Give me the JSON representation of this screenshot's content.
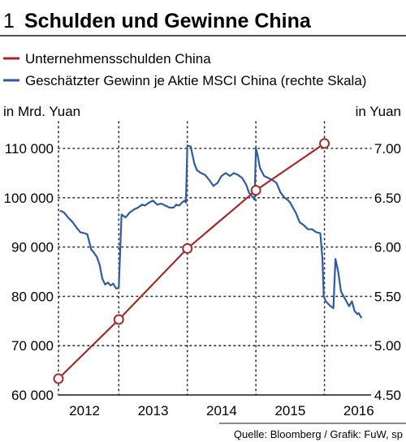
{
  "chart_data": {
    "type": "line",
    "title_number": "1",
    "title": "Schulden und Gewinne China",
    "legend": [
      {
        "label": "Unternehmensschulden China",
        "color": "#a52a2a"
      },
      {
        "label": "Geschätzter Gewinn je Aktie MSCI China (rechte Skala)",
        "color": "#2e5aa7"
      }
    ],
    "ylabel_left": "in Mrd. Yuan",
    "ylabel_right": "in Yuan",
    "ylim_left": [
      60000,
      110000
    ],
    "ylim_right": [
      4.5,
      7.0
    ],
    "yticks_left": [
      "110 000",
      "100 000",
      "90 000",
      "80 000",
      "70 000",
      "60 000"
    ],
    "yticks_left_values": [
      110000,
      100000,
      90000,
      80000,
      70000,
      60000
    ],
    "yticks_right": [
      "7.00",
      "6.50",
      "6.00",
      "5.50",
      "5.00",
      "4.50"
    ],
    "yticks_right_values": [
      7.0,
      6.5,
      6.0,
      5.5,
      5.0,
      4.5
    ],
    "xlim": [
      2011.62,
      2016.18
    ],
    "xticks": [
      "2012",
      "2013",
      "2014",
      "2015",
      "2016"
    ],
    "xtick_positions": [
      2012.0,
      2013.0,
      2014.0,
      2015.0,
      2016.0
    ],
    "gridlines_x": [
      2011.62,
      2012.5,
      2013.5,
      2014.5,
      2015.5
    ],
    "grid": true,
    "series": [
      {
        "name": "Unternehmensschulden China",
        "axis": "left",
        "color": "#a52a2a",
        "x": [
          2011.62,
          2012.5,
          2013.5,
          2014.5,
          2015.5
        ],
        "y": [
          63300,
          75300,
          89700,
          101500,
          111000
        ]
      },
      {
        "name": "Geschätzter Gewinn je Aktie MSCI China (rechte Skala)",
        "axis": "right",
        "color": "#2e5aa7",
        "x": [
          2011.64,
          2011.7,
          2011.76,
          2011.83,
          2011.88,
          2011.94,
          2012.0,
          2012.04,
          2012.1,
          2012.12,
          2012.18,
          2012.22,
          2012.26,
          2012.3,
          2012.34,
          2012.38,
          2012.42,
          2012.46,
          2012.48,
          2012.5,
          2012.54,
          2012.6,
          2012.66,
          2012.72,
          2012.78,
          2012.84,
          2012.88,
          2012.94,
          2013.0,
          2013.06,
          2013.12,
          2013.18,
          2013.24,
          2013.3,
          2013.34,
          2013.38,
          2013.42,
          2013.46,
          2013.48,
          2013.5,
          2013.55,
          2013.6,
          2013.64,
          2013.7,
          2013.76,
          2013.82,
          2013.88,
          2013.94,
          2014.0,
          2014.06,
          2014.12,
          2014.18,
          2014.24,
          2014.3,
          2014.36,
          2014.4,
          2014.46,
          2014.48,
          2014.5,
          2014.52,
          2014.56,
          2014.62,
          2014.68,
          2014.74,
          2014.8,
          2014.86,
          2014.92,
          2014.96,
          2015.0,
          2015.04,
          2015.08,
          2015.14,
          2015.2,
          2015.26,
          2015.32,
          2015.38,
          2015.44,
          2015.47,
          2015.49,
          2015.52,
          2015.56,
          2015.59,
          2015.63,
          2015.66,
          2015.7,
          2015.74,
          2015.78,
          2015.82,
          2015.86,
          2015.9,
          2015.94,
          2015.98,
          2016.0,
          2016.04
        ],
        "y": [
          6.37,
          6.35,
          6.3,
          6.25,
          6.2,
          6.15,
          6.14,
          6.13,
          5.97,
          5.96,
          5.9,
          5.82,
          5.68,
          5.62,
          5.64,
          5.61,
          5.63,
          5.58,
          5.58,
          5.59,
          6.33,
          6.3,
          6.35,
          6.38,
          6.4,
          6.43,
          6.42,
          6.45,
          6.47,
          6.43,
          6.44,
          6.42,
          6.4,
          6.4,
          6.43,
          6.42,
          6.45,
          6.47,
          6.45,
          7.03,
          7.02,
          6.85,
          6.78,
          6.75,
          6.73,
          6.68,
          6.62,
          6.65,
          6.72,
          6.75,
          6.72,
          6.75,
          6.73,
          6.7,
          6.63,
          6.55,
          6.5,
          6.48,
          7.0,
          6.95,
          6.8,
          6.72,
          6.7,
          6.68,
          6.65,
          6.55,
          6.5,
          6.48,
          6.45,
          6.4,
          6.35,
          6.25,
          6.22,
          6.18,
          6.18,
          6.15,
          6.14,
          5.88,
          5.5,
          5.45,
          5.42,
          5.4,
          5.38,
          5.88,
          5.75,
          5.55,
          5.5,
          5.45,
          5.4,
          5.45,
          5.35,
          5.32,
          5.33,
          5.28
        ]
      }
    ],
    "source": "Quelle: Bloomberg / Grafik: FuW, sp"
  }
}
